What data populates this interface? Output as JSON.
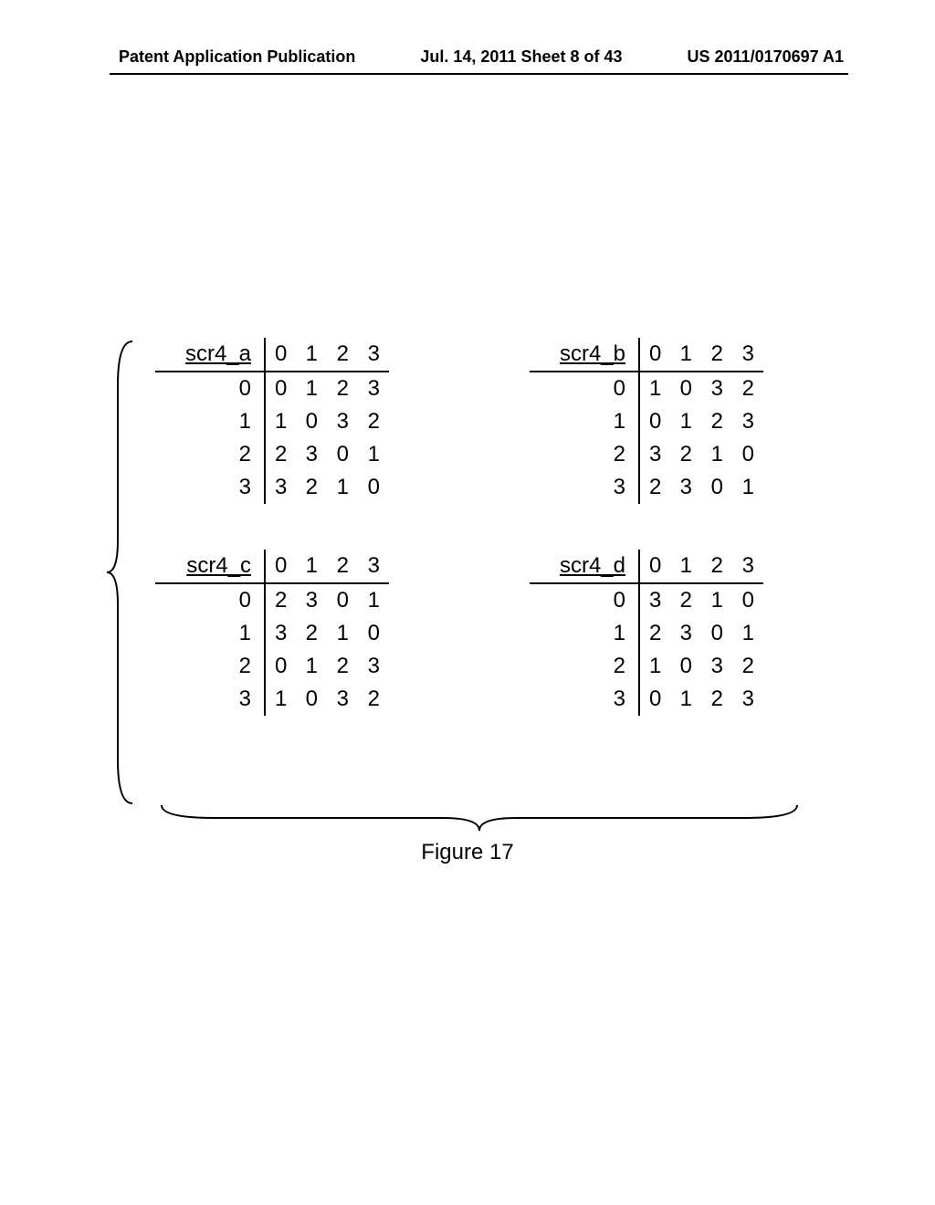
{
  "header": {
    "left": "Patent Application Publication",
    "mid": "Jul. 14, 2011  Sheet 8 of 43",
    "right": "US 2011/0170697 A1"
  },
  "caption": "Figure 17",
  "tables": [
    {
      "name": "scr4_a",
      "col_labels": [
        "0",
        "1",
        "2",
        "3"
      ],
      "row_labels": [
        "0",
        "1",
        "2",
        "3"
      ],
      "rows": [
        [
          "0",
          "1",
          "2",
          "3"
        ],
        [
          "1",
          "0",
          "3",
          "2"
        ],
        [
          "2",
          "3",
          "0",
          "1"
        ],
        [
          "3",
          "2",
          "1",
          "0"
        ]
      ]
    },
    {
      "name": "scr4_b",
      "col_labels": [
        "0",
        "1",
        "2",
        "3"
      ],
      "row_labels": [
        "0",
        "1",
        "2",
        "3"
      ],
      "rows": [
        [
          "1",
          "0",
          "3",
          "2"
        ],
        [
          "0",
          "1",
          "2",
          "3"
        ],
        [
          "3",
          "2",
          "1",
          "0"
        ],
        [
          "2",
          "3",
          "0",
          "1"
        ]
      ]
    },
    {
      "name": "scr4_c",
      "col_labels": [
        "0",
        "1",
        "2",
        "3"
      ],
      "row_labels": [
        "0",
        "1",
        "2",
        "3"
      ],
      "rows": [
        [
          "2",
          "3",
          "0",
          "1"
        ],
        [
          "3",
          "2",
          "1",
          "0"
        ],
        [
          "0",
          "1",
          "2",
          "3"
        ],
        [
          "1",
          "0",
          "3",
          "2"
        ]
      ]
    },
    {
      "name": "scr4_d",
      "col_labels": [
        "0",
        "1",
        "2",
        "3"
      ],
      "row_labels": [
        "0",
        "1",
        "2",
        "3"
      ],
      "rows": [
        [
          "3",
          "2",
          "1",
          "0"
        ],
        [
          "2",
          "3",
          "0",
          "1"
        ],
        [
          "1",
          "0",
          "3",
          "2"
        ],
        [
          "0",
          "1",
          "2",
          "3"
        ]
      ]
    }
  ],
  "style": {
    "brace_stroke": "#000000",
    "brace_width": 2,
    "text_color": "#000000",
    "background_color": "#ffffff",
    "font_size_header": 18,
    "font_size_body": 24
  }
}
